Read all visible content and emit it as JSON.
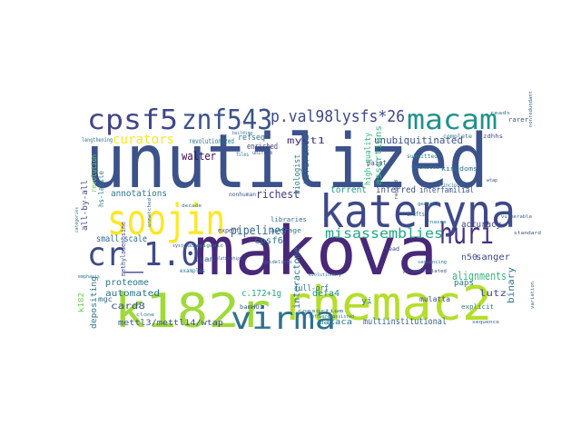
{
  "words": [
    {
      "text": "unutilized",
      "color": "#3b528b"
    },
    {
      "text": "makova",
      "color": "#482878"
    },
    {
      "text": "kateryna",
      "color": "#3e4989"
    },
    {
      "text": "rhemac2",
      "color": "#b5de2b"
    },
    {
      "text": "k182r",
      "color": "#a0da39"
    },
    {
      "text": "soojin",
      "color": "#fde725"
    },
    {
      "text": "virma",
      "color": "#2c728e"
    },
    {
      "text": "cr_1.0",
      "color": "#3e4a89"
    },
    {
      "text": "cpsf5",
      "color": "#414487"
    },
    {
      "text": "znf543",
      "color": "#3b528b"
    },
    {
      "text": "macam",
      "color": "#21918c"
    },
    {
      "text": "huri",
      "color": "#46337e"
    },
    {
      "text": "p.val98lysfs*26",
      "color": "#3e4989"
    },
    {
      "text": "misassemblies",
      "color": "#22a884"
    },
    {
      "text": "curators",
      "color": "#fde725"
    },
    {
      "text": "unubiquitinated",
      "color": "#3b528b"
    },
    {
      "text": "pipelines",
      "color": "#33638d"
    },
    {
      "text": "alignments",
      "color": "#35b779"
    },
    {
      "text": "richest",
      "color": "#443983"
    },
    {
      "text": "annotations",
      "color": "#2a788e"
    },
    {
      "text": "small-scale",
      "color": "#31688e"
    },
    {
      "text": "walter",
      "color": "#440154"
    },
    {
      "text": "myct1",
      "color": "#472d7b"
    },
    {
      "text": "cpsf6",
      "color": "#2c728e"
    },
    {
      "text": "card8",
      "color": "#3b528b"
    },
    {
      "text": "automated",
      "color": "#2c728e"
    },
    {
      "text": "multiinstitutional",
      "color": "#33638d"
    },
    {
      "text": "mettl3/mettl14/wtap",
      "color": "#3b528b"
    },
    {
      "text": "binary",
      "color": "#2a788e"
    },
    {
      "text": "sanger",
      "color": "#3e4989"
    },
    {
      "text": "lutz",
      "color": "#3e4989"
    },
    {
      "text": "accuracy",
      "color": "#414487"
    },
    {
      "text": "interactome",
      "color": "#2c728e"
    },
    {
      "text": "defa4",
      "color": "#21918c"
    },
    {
      "text": "macaca",
      "color": "#2a788e"
    },
    {
      "text": "full-orf",
      "color": "#2c728e"
    },
    {
      "text": "c.172+1g",
      "color": "#22a884"
    },
    {
      "text": "proteome",
      "color": "#2a788e"
    },
    {
      "text": "inferred",
      "color": "#3b528b"
    },
    {
      "text": "torrent",
      "color": "#1f9e89"
    },
    {
      "text": "interfamilial",
      "color": "#3b528b"
    },
    {
      "text": "refseq",
      "color": "#2c728e"
    },
    {
      "text": "enriched",
      "color": "#414487"
    },
    {
      "text": "revolutionized",
      "color": "#2a788e"
    },
    {
      "text": "biologist",
      "color": "#2a788e"
    },
    {
      "text": "reference",
      "color": "#31688e"
    },
    {
      "text": "assertions",
      "color": "#35b779"
    },
    {
      "text": "high-quality",
      "color": "#35b779"
    },
    {
      "text": "all-by-all",
      "color": "#3e4989"
    },
    {
      "text": "n50",
      "color": "#3b528b"
    },
    {
      "text": "paps",
      "color": "#2a788e"
    },
    {
      "text": "yi",
      "color": "#2c728e"
    },
    {
      "text": "igan",
      "color": "#3b528b"
    },
    {
      "text": "depositing",
      "color": "#2c728e"
    },
    {
      "text": "hs-labile",
      "color": "#2a788e"
    },
    {
      "text": "revolution",
      "color": "#6ece58"
    },
    {
      "text": "paint",
      "color": "#3b528b"
    },
    {
      "text": "mulatta",
      "color": "#3e4989"
    },
    {
      "text": "mgc",
      "color": "#31688e"
    },
    {
      "text": "k182",
      "color": "#6ece58"
    },
    {
      "text": "explicit",
      "color": "#2a788e"
    },
    {
      "text": "rarer",
      "color": "#3b528b"
    },
    {
      "text": "kingdoms",
      "color": "#2c728e"
    },
    {
      "text": "libraries",
      "color": "#31688e"
    },
    {
      "text": "average",
      "color": "#2a788e"
    },
    {
      "text": "expert",
      "color": "#3b528b"
    },
    {
      "text": "drafts",
      "color": "#31688e"
    },
    {
      "text": "methyladenosine",
      "color": "#3e4989"
    },
    {
      "text": "nonhuman",
      "color": "#3b528b"
    },
    {
      "text": "primates",
      "color": "#2a788e"
    },
    {
      "text": "principles",
      "color": "#31688e"
    },
    {
      "text": "zdhhs",
      "color": "#3e4989"
    },
    {
      "text": "lengthening",
      "color": "#2c728e"
    },
    {
      "text": "building",
      "color": "#31688e"
    },
    {
      "text": "files",
      "color": "#2a788e"
    },
    {
      "text": "uniform",
      "color": "#3b528b"
    },
    {
      "text": "read",
      "color": "#3e4989"
    },
    {
      "text": "examples",
      "color": "#2a788e"
    },
    {
      "text": "guidelines",
      "color": "#31688e"
    },
    {
      "text": "evolutionary",
      "color": "#2a788e"
    },
    {
      "text": "bamHO1",
      "color": "#3b528b"
    },
    {
      "text": "variation",
      "color": "#2c728e"
    },
    {
      "text": "consortium",
      "color": "#31688e"
    },
    {
      "text": "software-assisted",
      "color": "#2a788e"
    },
    {
      "text": "polyadenylated",
      "color": "#3b528b"
    },
    {
      "text": "emphasis",
      "color": "#2a788e"
    },
    {
      "text": "categories",
      "color": "#2a788e"
    },
    {
      "text": "unmatched",
      "color": "#31688e"
    },
    {
      "text": "systematic",
      "color": "#3b528b"
    },
    {
      "text": "epigenic",
      "color": "#2a788e"
    },
    {
      "text": "nonredundant",
      "color": "#31688e"
    },
    {
      "text": "relationships",
      "color": "#3b528b"
    },
    {
      "text": "submitted",
      "color": "#2a788e"
    },
    {
      "text": "complete",
      "color": "#2c728e"
    },
    {
      "text": "genomic",
      "color": "#31688e"
    },
    {
      "text": "ranked",
      "color": "#3e4989"
    },
    {
      "text": "reads",
      "color": "#2a788e"
    },
    {
      "text": "wtap",
      "color": "#3b528b"
    },
    {
      "text": "vulnerable",
      "color": "#31688e"
    },
    {
      "text": "rnases",
      "color": "#2a788e"
    },
    {
      "text": "standard",
      "color": "#3b528b"
    },
    {
      "text": "sequencing",
      "color": "#2c728e"
    },
    {
      "text": "sequence",
      "color": "#31688e"
    },
    {
      "text": "clone",
      "color": "#2a788e"
    },
    {
      "text": "cases",
      "color": "#3b528b"
    },
    {
      "text": "decade",
      "color": "#2a788e"
    }
  ]
}
